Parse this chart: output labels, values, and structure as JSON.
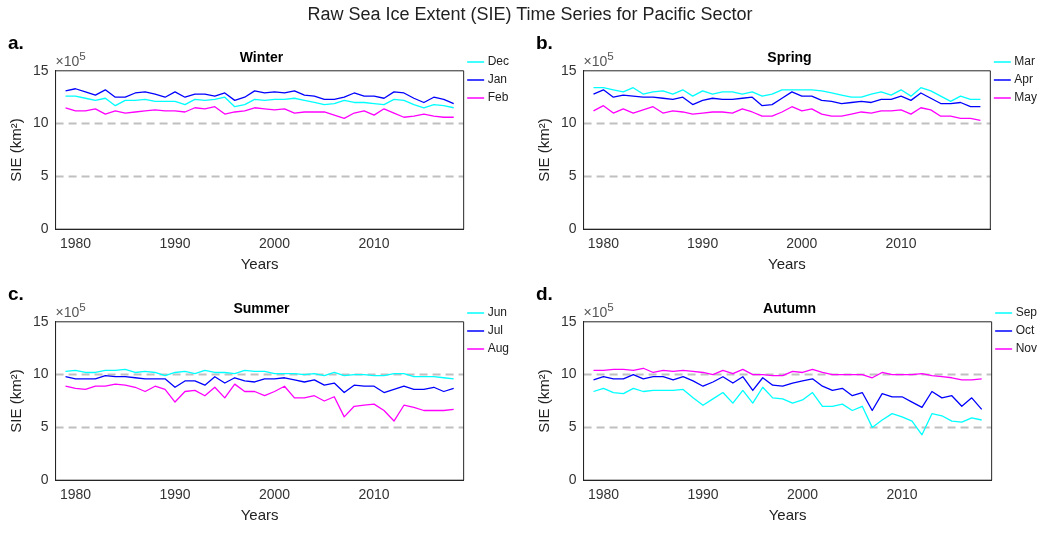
{
  "chart_data": [
    {
      "type": "line",
      "title": "Winter",
      "xlabel": "Years",
      "ylabel": "SIE (km²)",
      "annotations": [
        "a.",
        "×10$^{5}$",
        "Raw Sea Ice Extent (SIE) Time Series for Pacific Sector"
      ],
      "x": [
        1979,
        1980,
        1981,
        1982,
        1983,
        1984,
        1985,
        1986,
        1987,
        1988,
        1989,
        1990,
        1991,
        1992,
        1993,
        1994,
        1995,
        1996,
        1997,
        1998,
        1999,
        2000,
        2001,
        2002,
        2003,
        2004,
        2005,
        2006,
        2007,
        2008,
        2009,
        2010,
        2011,
        2012,
        2013,
        2014,
        2015,
        2016,
        2017,
        2018
      ],
      "series": [
        {
          "name": "Dec",
          "color": "#00ffff",
          "values": [
            12.6,
            12.6,
            12.4,
            12.2,
            12.4,
            11.7,
            12.2,
            12.2,
            12.3,
            12.1,
            12.1,
            12.1,
            11.8,
            12.3,
            12.2,
            12.3,
            12.5,
            11.6,
            11.8,
            12.3,
            12.2,
            12.3,
            12.3,
            12.4,
            12.2,
            12.0,
            11.8,
            11.9,
            12.2,
            12.0,
            12.0,
            11.9,
            11.8,
            12.3,
            12.2,
            11.8,
            11.5,
            11.8,
            11.7,
            11.5
          ]
        },
        {
          "name": "Jan",
          "color": "#0000ff",
          "values": [
            13.1,
            13.3,
            13.0,
            12.7,
            13.2,
            12.5,
            12.5,
            12.9,
            13.0,
            12.8,
            12.5,
            13.0,
            12.5,
            12.8,
            12.8,
            12.6,
            12.9,
            12.2,
            12.5,
            13.1,
            12.9,
            13.0,
            12.9,
            13.1,
            12.7,
            12.6,
            12.3,
            12.3,
            12.5,
            12.9,
            12.6,
            12.6,
            12.4,
            13.0,
            12.9,
            12.4,
            12.0,
            12.5,
            12.3,
            11.9
          ]
        },
        {
          "name": "Feb",
          "color": "#ff00ff",
          "values": [
            11.5,
            11.2,
            11.2,
            11.4,
            10.9,
            11.2,
            11.0,
            11.1,
            11.2,
            11.3,
            11.2,
            11.2,
            11.1,
            11.5,
            11.4,
            11.6,
            10.9,
            11.1,
            11.2,
            11.5,
            11.4,
            11.3,
            11.4,
            11.0,
            11.1,
            11.1,
            11.1,
            10.8,
            10.5,
            11.0,
            11.2,
            10.8,
            11.4,
            11.0,
            10.6,
            10.7,
            10.9,
            10.7,
            10.6,
            10.6
          ]
        }
      ],
      "xlim": [
        1978,
        2019
      ],
      "xticks": [
        1980,
        1990,
        2000,
        2010
      ],
      "ylim": [
        0,
        15
      ],
      "yticks": [
        0,
        5,
        10,
        15
      ],
      "grid": false,
      "legend": "top right",
      "marker": "none",
      "line_style": "solid",
      "ref_lines": [
        {
          "axis": "y",
          "value": 10,
          "color": "#c0c0c0",
          "line_style": "dashed"
        },
        {
          "axis": "y",
          "value": 5,
          "color": "#c0c0c0",
          "line_style": "dashed"
        }
      ]
    },
    {
      "type": "line",
      "title": "Spring",
      "xlabel": "Years",
      "ylabel": "SIE (km²)",
      "annotations": [
        "b.",
        "×10$^{5}$"
      ],
      "x": [
        1979,
        1980,
        1981,
        1982,
        1983,
        1984,
        1985,
        1986,
        1987,
        1988,
        1989,
        1990,
        1991,
        1992,
        1993,
        1994,
        1995,
        1996,
        1997,
        1998,
        1999,
        2000,
        2001,
        2002,
        2003,
        2004,
        2005,
        2006,
        2007,
        2008,
        2009,
        2010,
        2011,
        2012,
        2013,
        2014,
        2015,
        2016,
        2017,
        2018
      ],
      "series": [
        {
          "name": "Mar",
          "color": "#00ffff",
          "values": [
            13.4,
            13.4,
            13.2,
            13.0,
            13.4,
            12.8,
            13.0,
            13.1,
            12.8,
            13.2,
            12.6,
            13.1,
            12.8,
            13.0,
            13.0,
            12.8,
            13.0,
            12.6,
            12.8,
            13.2,
            13.2,
            13.2,
            13.2,
            13.1,
            12.9,
            12.7,
            12.5,
            12.5,
            12.8,
            13.0,
            12.7,
            13.2,
            12.6,
            13.4,
            13.1,
            12.6,
            12.1,
            12.6,
            12.3,
            12.3
          ]
        },
        {
          "name": "Apr",
          "color": "#0000ff",
          "values": [
            12.8,
            13.2,
            12.5,
            12.7,
            12.6,
            12.5,
            12.5,
            12.4,
            12.3,
            12.5,
            11.8,
            12.2,
            12.4,
            12.3,
            12.3,
            12.4,
            12.5,
            11.7,
            11.8,
            12.4,
            13.0,
            12.6,
            12.6,
            12.2,
            12.1,
            11.9,
            12.0,
            12.1,
            12.0,
            12.3,
            12.3,
            12.6,
            12.2,
            12.9,
            12.4,
            11.9,
            11.9,
            12.0,
            11.6,
            11.6
          ]
        },
        {
          "name": "May",
          "color": "#ff00ff",
          "values": [
            11.2,
            11.7,
            11.0,
            11.4,
            11.0,
            11.3,
            11.6,
            11.0,
            11.2,
            11.1,
            10.9,
            11.0,
            11.1,
            11.1,
            11.0,
            11.4,
            11.1,
            10.7,
            10.7,
            11.1,
            11.6,
            11.2,
            11.4,
            10.9,
            10.7,
            10.7,
            10.9,
            11.1,
            11.0,
            11.2,
            11.2,
            11.3,
            10.9,
            11.5,
            11.3,
            10.7,
            10.7,
            10.5,
            10.5,
            10.3
          ]
        }
      ],
      "xlim": [
        1978,
        2019
      ],
      "xticks": [
        1980,
        1990,
        2000,
        2010
      ],
      "ylim": [
        0,
        15
      ],
      "yticks": [
        0,
        5,
        10,
        15
      ],
      "grid": false,
      "legend": "top right",
      "marker": "none",
      "line_style": "solid",
      "ref_lines": [
        {
          "axis": "y",
          "value": 10,
          "color": "#c0c0c0",
          "line_style": "dashed"
        },
        {
          "axis": "y",
          "value": 5,
          "color": "#c0c0c0",
          "line_style": "dashed"
        }
      ]
    },
    {
      "type": "line",
      "title": "Summer",
      "xlabel": "Years",
      "ylabel": "SIE (km²)",
      "annotations": [
        "c.",
        "×10$^{5}$"
      ],
      "x": [
        1979,
        1980,
        1981,
        1982,
        1983,
        1984,
        1985,
        1986,
        1987,
        1988,
        1989,
        1990,
        1991,
        1992,
        1993,
        1994,
        1995,
        1996,
        1997,
        1998,
        1999,
        2000,
        2001,
        2002,
        2003,
        2004,
        2005,
        2006,
        2007,
        2008,
        2009,
        2010,
        2011,
        2012,
        2013,
        2014,
        2015,
        2016,
        2017,
        2018
      ],
      "series": [
        {
          "name": "Jun",
          "color": "#00ffff",
          "values": [
            10.3,
            10.4,
            10.2,
            10.2,
            10.4,
            10.4,
            10.5,
            10.2,
            10.3,
            10.2,
            9.9,
            10.2,
            10.3,
            10.1,
            10.4,
            10.2,
            10.2,
            10.1,
            10.4,
            10.3,
            10.3,
            10.1,
            10.1,
            10.1,
            10.0,
            10.1,
            9.9,
            10.2,
            9.9,
            10.0,
            10.0,
            9.9,
            9.9,
            10.1,
            10.1,
            9.8,
            9.8,
            9.8,
            9.7,
            9.6
          ]
        },
        {
          "name": "Jul",
          "color": "#0000ff",
          "values": [
            9.8,
            9.6,
            9.6,
            9.6,
            9.9,
            9.8,
            9.8,
            9.7,
            9.6,
            9.6,
            9.6,
            8.8,
            9.4,
            9.4,
            9.0,
            9.8,
            9.2,
            9.7,
            9.4,
            9.3,
            9.6,
            9.6,
            9.7,
            9.5,
            9.3,
            9.5,
            9.0,
            9.2,
            8.3,
            9.0,
            8.9,
            8.9,
            8.3,
            8.6,
            8.9,
            8.6,
            8.6,
            8.8,
            8.4,
            8.7
          ]
        },
        {
          "name": "Aug",
          "color": "#ff00ff",
          "values": [
            8.9,
            8.7,
            8.6,
            8.9,
            8.9,
            9.1,
            9.0,
            8.8,
            8.4,
            8.9,
            8.6,
            7.4,
            8.4,
            8.5,
            8.0,
            8.8,
            7.8,
            9.1,
            8.4,
            8.4,
            8.0,
            8.4,
            8.9,
            7.8,
            7.8,
            8.0,
            7.5,
            7.9,
            6.0,
            7.0,
            7.1,
            7.2,
            6.6,
            5.6,
            7.1,
            6.9,
            6.6,
            6.6,
            6.6,
            6.7
          ]
        }
      ],
      "xlim": [
        1978,
        2019
      ],
      "xticks": [
        1980,
        1990,
        2000,
        2010
      ],
      "ylim": [
        0,
        15
      ],
      "yticks": [
        0,
        5,
        10,
        15
      ],
      "grid": false,
      "legend": "top right",
      "marker": "none",
      "line_style": "solid",
      "ref_lines": [
        {
          "axis": "y",
          "value": 10,
          "color": "#c0c0c0",
          "line_style": "dashed"
        },
        {
          "axis": "y",
          "value": 5,
          "color": "#c0c0c0",
          "line_style": "dashed"
        }
      ]
    },
    {
      "type": "line",
      "title": "Autumn",
      "xlabel": "Years",
      "ylabel": "SIE (km²)",
      "annotations": [
        "d.",
        "×10$^{5}$"
      ],
      "x": [
        1979,
        1980,
        1981,
        1982,
        1983,
        1984,
        1985,
        1986,
        1987,
        1988,
        1989,
        1990,
        1991,
        1992,
        1993,
        1994,
        1995,
        1996,
        1997,
        1998,
        1999,
        2000,
        2001,
        2002,
        2003,
        2004,
        2005,
        2006,
        2007,
        2008,
        2009,
        2010,
        2011,
        2012,
        2013,
        2014,
        2015,
        2016,
        2017,
        2018
      ],
      "series": [
        {
          "name": "Sep",
          "color": "#00ffff",
          "values": [
            8.4,
            8.7,
            8.3,
            8.2,
            8.7,
            8.4,
            8.5,
            8.5,
            8.5,
            8.6,
            7.8,
            7.1,
            7.7,
            8.3,
            7.3,
            8.5,
            7.3,
            8.8,
            7.8,
            7.7,
            7.3,
            7.6,
            8.3,
            7.0,
            7.0,
            7.2,
            6.6,
            7.0,
            5.0,
            5.7,
            6.3,
            6.0,
            5.6,
            4.3,
            6.3,
            6.1,
            5.6,
            5.5,
            5.9,
            5.7
          ]
        },
        {
          "name": "Oct",
          "color": "#0000ff",
          "values": [
            9.5,
            9.8,
            9.6,
            9.6,
            10.0,
            9.6,
            9.8,
            9.8,
            9.5,
            9.8,
            9.4,
            8.9,
            9.3,
            9.8,
            9.2,
            9.8,
            8.5,
            9.7,
            9.0,
            8.9,
            9.2,
            9.4,
            9.6,
            8.9,
            8.5,
            8.7,
            8.0,
            8.3,
            6.6,
            8.2,
            7.9,
            7.9,
            7.4,
            6.9,
            8.4,
            7.8,
            8.0,
            7.0,
            7.8,
            6.7
          ]
        },
        {
          "name": "Nov",
          "color": "#ff00ff",
          "values": [
            10.4,
            10.4,
            10.5,
            10.5,
            10.4,
            10.6,
            10.2,
            10.4,
            10.3,
            10.4,
            10.3,
            10.2,
            10.0,
            10.4,
            10.1,
            10.5,
            10.0,
            10.0,
            9.9,
            9.9,
            10.3,
            10.2,
            10.5,
            10.2,
            10.0,
            10.0,
            10.0,
            10.0,
            9.7,
            10.2,
            10.0,
            10.0,
            10.0,
            10.1,
            9.9,
            9.8,
            9.7,
            9.5,
            9.5,
            9.6
          ]
        }
      ],
      "xlim": [
        1978,
        2019
      ],
      "xticks": [
        1980,
        1990,
        2000,
        2010
      ],
      "ylim": [
        0,
        15
      ],
      "yticks": [
        0,
        5,
        10,
        15
      ],
      "grid": false,
      "legend": "top right",
      "marker": "none",
      "line_style": "solid",
      "ref_lines": [
        {
          "axis": "y",
          "value": 10,
          "color": "#c0c0c0",
          "line_style": "dashed"
        },
        {
          "axis": "y",
          "value": 5,
          "color": "#c0c0c0",
          "line_style": "dashed"
        }
      ]
    }
  ]
}
